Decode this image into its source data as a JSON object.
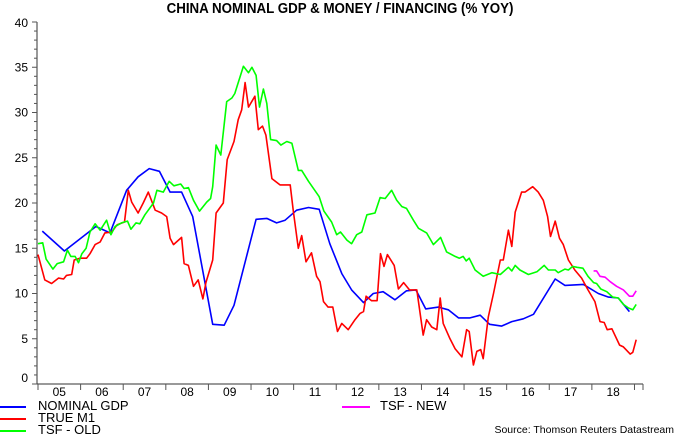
{
  "chart_data": {
    "type": "line",
    "title": "CHINA NOMINAL GDP & MONEY / FINANCING (% YOY)",
    "xlabel": "",
    "ylabel": "",
    "xlim": [
      2005,
      2019.2
    ],
    "ylim": [
      0,
      40
    ],
    "y_ticks": [
      0,
      5,
      10,
      15,
      20,
      25,
      30,
      35,
      40
    ],
    "y_tick_labels": [
      "0",
      "5",
      "10",
      "15",
      "20",
      "25",
      "30",
      "35",
      "40"
    ],
    "x_tick_labels": [
      "05",
      "06",
      "07",
      "08",
      "09",
      "10",
      "11",
      "12",
      "13",
      "14",
      "15",
      "16",
      "17",
      "18"
    ],
    "grid": false,
    "legend_position": "bottom",
    "source": "Source: Thomson Reuters Datastream",
    "series": [
      {
        "name": "NOMINAL GDP",
        "color": "#0000ff",
        "points": [
          [
            2005.1,
            16.9
          ],
          [
            2005.62,
            14.7
          ],
          [
            2006.36,
            17.4
          ],
          [
            2006.69,
            16.7
          ],
          [
            2007.08,
            21.4
          ],
          [
            2007.35,
            22.9
          ],
          [
            2007.61,
            23.8
          ],
          [
            2007.85,
            23.5
          ],
          [
            2008.1,
            21.2
          ],
          [
            2008.37,
            21.2
          ],
          [
            2008.63,
            18.5
          ],
          [
            2009.1,
            6.6
          ],
          [
            2009.37,
            6.5
          ],
          [
            2009.6,
            8.7
          ],
          [
            2010.12,
            18.2
          ],
          [
            2010.37,
            18.3
          ],
          [
            2010.6,
            17.8
          ],
          [
            2010.8,
            18.1
          ],
          [
            2011.07,
            19.2
          ],
          [
            2011.35,
            19.5
          ],
          [
            2011.6,
            19.3
          ],
          [
            2011.85,
            15.5
          ],
          [
            2012.13,
            12.2
          ],
          [
            2012.36,
            10.4
          ],
          [
            2012.64,
            9.0
          ],
          [
            2012.87,
            10.0
          ],
          [
            2013.1,
            10.2
          ],
          [
            2013.38,
            9.3
          ],
          [
            2013.65,
            10.3
          ],
          [
            2013.87,
            10.4
          ],
          [
            2014.1,
            8.3
          ],
          [
            2014.4,
            8.5
          ],
          [
            2014.63,
            8.2
          ],
          [
            2014.87,
            7.3
          ],
          [
            2015.14,
            7.3
          ],
          [
            2015.38,
            7.6
          ],
          [
            2015.6,
            6.6
          ],
          [
            2015.88,
            6.4
          ],
          [
            2016.12,
            6.9
          ],
          [
            2016.39,
            7.2
          ],
          [
            2016.63,
            7.7
          ],
          [
            2017.14,
            11.6
          ],
          [
            2017.37,
            10.9
          ],
          [
            2017.8,
            11.0
          ],
          [
            2018.15,
            10.0
          ],
          [
            2018.39,
            9.6
          ],
          [
            2018.62,
            9.5
          ],
          [
            2018.88,
            8.0
          ]
        ]
      },
      {
        "name": "TRUE M1",
        "color": "#ff0000",
        "points": [
          [
            2005.0,
            14.3
          ],
          [
            2005.16,
            11.5
          ],
          [
            2005.32,
            11.1
          ],
          [
            2005.48,
            11.7
          ],
          [
            2005.6,
            11.6
          ],
          [
            2005.67,
            12.0
          ],
          [
            2005.79,
            12.1
          ],
          [
            2005.85,
            13.7
          ],
          [
            2005.99,
            13.9
          ],
          [
            2006.14,
            13.9
          ],
          [
            2006.22,
            14.4
          ],
          [
            2006.34,
            15.4
          ],
          [
            2006.46,
            15.7
          ],
          [
            2006.57,
            16.7
          ],
          [
            2006.73,
            16.8
          ],
          [
            2006.86,
            17.6
          ],
          [
            2007.03,
            17.9
          ],
          [
            2007.12,
            21.4
          ],
          [
            2007.2,
            20.1
          ],
          [
            2007.35,
            18.9
          ],
          [
            2007.47,
            20.0
          ],
          [
            2007.59,
            21.2
          ],
          [
            2007.75,
            19.2
          ],
          [
            2007.9,
            18.9
          ],
          [
            2008.02,
            18.5
          ],
          [
            2008.1,
            16.1
          ],
          [
            2008.18,
            15.4
          ],
          [
            2008.37,
            16.2
          ],
          [
            2008.43,
            13.3
          ],
          [
            2008.53,
            13.1
          ],
          [
            2008.65,
            10.8
          ],
          [
            2008.76,
            11.5
          ],
          [
            2008.87,
            9.4
          ],
          [
            2008.94,
            11.2
          ],
          [
            2009.1,
            13.7
          ],
          [
            2009.18,
            18.9
          ],
          [
            2009.35,
            20.0
          ],
          [
            2009.44,
            24.8
          ],
          [
            2009.6,
            26.8
          ],
          [
            2009.7,
            29.2
          ],
          [
            2009.78,
            30.3
          ],
          [
            2009.86,
            33.3
          ],
          [
            2009.94,
            30.6
          ],
          [
            2010.09,
            31.8
          ],
          [
            2010.17,
            28.1
          ],
          [
            2010.27,
            28.5
          ],
          [
            2010.35,
            27.5
          ],
          [
            2010.49,
            22.7
          ],
          [
            2010.68,
            22.0
          ],
          [
            2010.92,
            22.0
          ],
          [
            2010.99,
            19.2
          ],
          [
            2011.11,
            15.0
          ],
          [
            2011.19,
            16.4
          ],
          [
            2011.29,
            13.5
          ],
          [
            2011.42,
            14.5
          ],
          [
            2011.54,
            11.9
          ],
          [
            2011.62,
            11.3
          ],
          [
            2011.7,
            9.1
          ],
          [
            2011.81,
            8.5
          ],
          [
            2011.92,
            8.5
          ],
          [
            2012.03,
            5.8
          ],
          [
            2012.13,
            6.7
          ],
          [
            2012.28,
            6.0
          ],
          [
            2012.44,
            7.1
          ],
          [
            2012.56,
            7.8
          ],
          [
            2012.64,
            8.0
          ],
          [
            2012.7,
            9.7
          ],
          [
            2012.83,
            9.2
          ],
          [
            2012.96,
            9.2
          ],
          [
            2013.04,
            14.4
          ],
          [
            2013.12,
            13.0
          ],
          [
            2013.2,
            14.3
          ],
          [
            2013.36,
            13.1
          ],
          [
            2013.46,
            10.5
          ],
          [
            2013.58,
            11.2
          ],
          [
            2013.72,
            10.4
          ],
          [
            2013.89,
            10.4
          ],
          [
            2014.04,
            5.4
          ],
          [
            2014.12,
            7.1
          ],
          [
            2014.24,
            6.3
          ],
          [
            2014.36,
            6.0
          ],
          [
            2014.44,
            9.5
          ],
          [
            2014.51,
            6.7
          ],
          [
            2014.67,
            5.0
          ],
          [
            2014.79,
            3.9
          ],
          [
            2014.95,
            3.0
          ],
          [
            2015.06,
            6.0
          ],
          [
            2015.12,
            5.8
          ],
          [
            2015.22,
            2.1
          ],
          [
            2015.3,
            3.6
          ],
          [
            2015.39,
            3.8
          ],
          [
            2015.45,
            2.8
          ],
          [
            2015.57,
            7.4
          ],
          [
            2015.69,
            10.0
          ],
          [
            2015.85,
            13.7
          ],
          [
            2015.92,
            13.7
          ],
          [
            2016.04,
            17.0
          ],
          [
            2016.12,
            15.2
          ],
          [
            2016.2,
            19.0
          ],
          [
            2016.35,
            21.2
          ],
          [
            2016.43,
            21.2
          ],
          [
            2016.61,
            21.8
          ],
          [
            2016.74,
            21.2
          ],
          [
            2016.86,
            20.3
          ],
          [
            2016.96,
            18.5
          ],
          [
            2017.03,
            16.3
          ],
          [
            2017.14,
            18.0
          ],
          [
            2017.24,
            16.1
          ],
          [
            2017.33,
            15.4
          ],
          [
            2017.45,
            13.7
          ],
          [
            2017.6,
            12.6
          ],
          [
            2017.76,
            11.7
          ],
          [
            2017.91,
            10.4
          ],
          [
            2018.07,
            9.1
          ],
          [
            2018.19,
            6.9
          ],
          [
            2018.29,
            6.8
          ],
          [
            2018.36,
            6.0
          ],
          [
            2018.47,
            6.1
          ],
          [
            2018.65,
            4.3
          ],
          [
            2018.74,
            4.1
          ],
          [
            2018.9,
            3.3
          ],
          [
            2018.96,
            3.5
          ],
          [
            2019.04,
            4.9
          ]
        ]
      },
      {
        "name": "TSF - OLD",
        "color": "#00ff00",
        "points": [
          [
            2005.0,
            15.5
          ],
          [
            2005.11,
            15.6
          ],
          [
            2005.19,
            13.8
          ],
          [
            2005.35,
            12.7
          ],
          [
            2005.45,
            13.3
          ],
          [
            2005.6,
            13.5
          ],
          [
            2005.69,
            14.8
          ],
          [
            2005.77,
            14.1
          ],
          [
            2005.87,
            14.1
          ],
          [
            2005.95,
            13.4
          ],
          [
            2006.03,
            14.4
          ],
          [
            2006.13,
            15.0
          ],
          [
            2006.22,
            16.8
          ],
          [
            2006.34,
            17.7
          ],
          [
            2006.46,
            17.0
          ],
          [
            2006.61,
            18.1
          ],
          [
            2006.71,
            16.5
          ],
          [
            2006.81,
            17.4
          ],
          [
            2006.96,
            17.8
          ],
          [
            2007.1,
            18.0
          ],
          [
            2007.18,
            17.1
          ],
          [
            2007.3,
            17.8
          ],
          [
            2007.39,
            17.7
          ],
          [
            2007.51,
            18.7
          ],
          [
            2007.71,
            20.0
          ],
          [
            2007.79,
            21.4
          ],
          [
            2007.94,
            21.2
          ],
          [
            2008.08,
            22.4
          ],
          [
            2008.19,
            21.9
          ],
          [
            2008.35,
            22.1
          ],
          [
            2008.43,
            21.6
          ],
          [
            2008.53,
            21.7
          ],
          [
            2008.65,
            20.3
          ],
          [
            2008.79,
            19.1
          ],
          [
            2008.96,
            20.1
          ],
          [
            2009.05,
            20.5
          ],
          [
            2009.1,
            21.8
          ],
          [
            2009.18,
            26.4
          ],
          [
            2009.29,
            25.3
          ],
          [
            2009.43,
            31.2
          ],
          [
            2009.55,
            31.6
          ],
          [
            2009.62,
            32.1
          ],
          [
            2009.82,
            35.1
          ],
          [
            2009.94,
            34.4
          ],
          [
            2010.02,
            35.0
          ],
          [
            2010.12,
            34.1
          ],
          [
            2010.2,
            30.6
          ],
          [
            2010.29,
            32.6
          ],
          [
            2010.37,
            31.0
          ],
          [
            2010.46,
            27.0
          ],
          [
            2010.6,
            26.9
          ],
          [
            2010.7,
            26.4
          ],
          [
            2010.84,
            26.8
          ],
          [
            2010.96,
            26.6
          ],
          [
            2011.11,
            23.6
          ],
          [
            2011.19,
            23.6
          ],
          [
            2011.35,
            22.4
          ],
          [
            2011.6,
            20.7
          ],
          [
            2011.71,
            19.1
          ],
          [
            2011.89,
            17.9
          ],
          [
            2012.01,
            16.5
          ],
          [
            2012.1,
            16.8
          ],
          [
            2012.25,
            15.9
          ],
          [
            2012.36,
            15.5
          ],
          [
            2012.48,
            16.5
          ],
          [
            2012.6,
            16.8
          ],
          [
            2012.72,
            18.7
          ],
          [
            2012.91,
            18.9
          ],
          [
            2013.03,
            20.6
          ],
          [
            2013.15,
            20.5
          ],
          [
            2013.3,
            21.4
          ],
          [
            2013.42,
            20.3
          ],
          [
            2013.54,
            19.6
          ],
          [
            2013.65,
            19.4
          ],
          [
            2013.81,
            18.1
          ],
          [
            2013.93,
            17.2
          ],
          [
            2014.12,
            16.7
          ],
          [
            2014.28,
            15.4
          ],
          [
            2014.45,
            16.2
          ],
          [
            2014.59,
            14.6
          ],
          [
            2014.79,
            14.1
          ],
          [
            2014.89,
            13.9
          ],
          [
            2014.98,
            14.1
          ],
          [
            2015.05,
            13.6
          ],
          [
            2015.12,
            13.9
          ],
          [
            2015.26,
            12.6
          ],
          [
            2015.45,
            11.9
          ],
          [
            2015.65,
            12.3
          ],
          [
            2015.85,
            12.1
          ],
          [
            2016.04,
            12.9
          ],
          [
            2016.12,
            12.5
          ],
          [
            2016.2,
            13.1
          ],
          [
            2016.31,
            12.6
          ],
          [
            2016.51,
            12.1
          ],
          [
            2016.71,
            12.4
          ],
          [
            2016.88,
            13.1
          ],
          [
            2016.98,
            12.6
          ],
          [
            2017.14,
            12.6
          ],
          [
            2017.21,
            12.3
          ],
          [
            2017.37,
            12.7
          ],
          [
            2017.45,
            12.6
          ],
          [
            2017.55,
            13.0
          ],
          [
            2017.65,
            12.9
          ],
          [
            2017.79,
            12.8
          ],
          [
            2017.91,
            11.9
          ],
          [
            2018.04,
            11.2
          ],
          [
            2018.11,
            11.1
          ],
          [
            2018.21,
            10.5
          ],
          [
            2018.35,
            10.2
          ],
          [
            2018.49,
            9.6
          ],
          [
            2018.62,
            9.5
          ],
          [
            2018.74,
            8.8
          ],
          [
            2018.86,
            8.4
          ],
          [
            2018.96,
            8.2
          ],
          [
            2019.04,
            8.8
          ]
        ]
      },
      {
        "name": "TSF - NEW",
        "color": "#ff00ff",
        "points": [
          [
            2018.04,
            12.5
          ],
          [
            2018.11,
            12.5
          ],
          [
            2018.19,
            11.9
          ],
          [
            2018.31,
            11.8
          ],
          [
            2018.43,
            11.3
          ],
          [
            2018.58,
            10.8
          ],
          [
            2018.74,
            10.4
          ],
          [
            2018.88,
            9.7
          ],
          [
            2018.96,
            9.7
          ],
          [
            2019.04,
            10.3
          ]
        ]
      }
    ]
  }
}
